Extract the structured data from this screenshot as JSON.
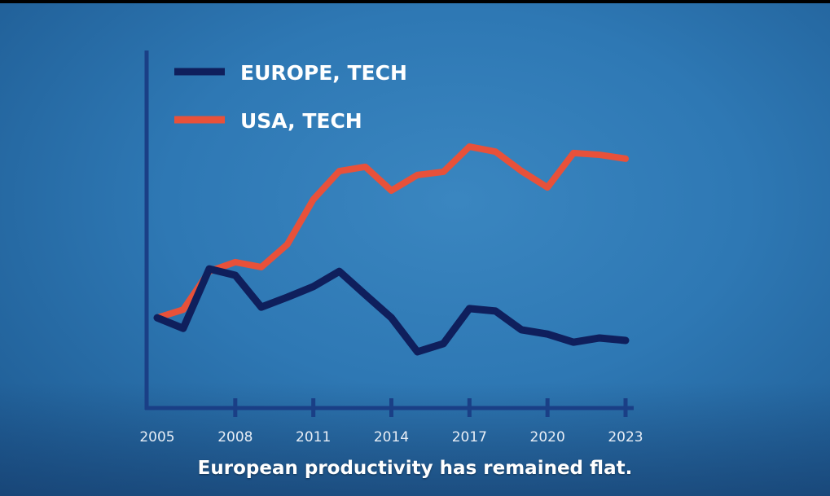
{
  "chart_data": {
    "type": "line",
    "title": "",
    "xlabel": "",
    "ylabel": "",
    "x": [
      2005,
      2006,
      2007,
      2008,
      2009,
      2010,
      2011,
      2012,
      2013,
      2014,
      2015,
      2016,
      2017,
      2018,
      2019,
      2020,
      2021,
      2022,
      2023
    ],
    "xticks": [
      "2005",
      "2008",
      "2011",
      "2014",
      "2017",
      "2020",
      "2023"
    ],
    "xlim": [
      2005,
      2023
    ],
    "ylim": [
      0,
      100
    ],
    "grid": false,
    "legend_position": "top-left",
    "series": [
      {
        "name": "EUROPE, TECH",
        "color": "#0f1f5c",
        "values": [
          24.1,
          21.1,
          37.9,
          36.1,
          27.1,
          29.9,
          32.9,
          37.2,
          30.6,
          24.1,
          14.5,
          16.8,
          26.7,
          26.0,
          20.7,
          19.5,
          17.2,
          18.4,
          17.7
        ]
      },
      {
        "name": "USA, TECH",
        "color": "#e8513a",
        "values": [
          24.1,
          26.4,
          37.2,
          39.8,
          38.4,
          44.8,
          57.5,
          65.5,
          66.7,
          60.0,
          64.4,
          65.3,
          72.4,
          71.0,
          65.5,
          60.9,
          70.6,
          70.1,
          69.0
        ]
      }
    ]
  },
  "caption": "European productivity has remained flat."
}
